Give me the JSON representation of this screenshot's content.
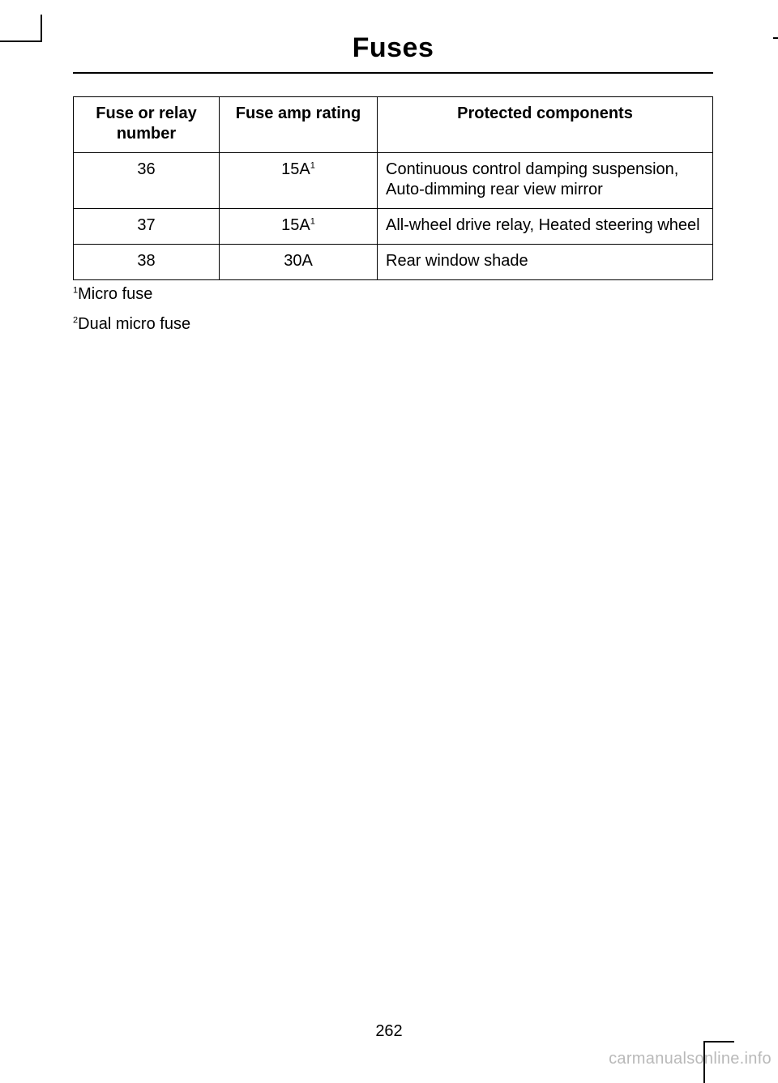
{
  "page": {
    "title": "Fuses",
    "number": "262",
    "watermark": "carmanualsonline.info"
  },
  "table": {
    "headers": {
      "col1_line1": "Fuse or relay",
      "col1_line2": "number",
      "col2": "Fuse amp rating",
      "col3": "Protected components"
    },
    "rows": [
      {
        "num": "36",
        "amp": "15A",
        "amp_sup": "1",
        "comp": "Continuous control damping suspen­sion, Auto-dimming rear view mirror"
      },
      {
        "num": "37",
        "amp": "15A",
        "amp_sup": "1",
        "comp": "All-wheel drive relay, Heated steering wheel"
      },
      {
        "num": "38",
        "amp": "30A",
        "amp_sup": "",
        "comp": "Rear window shade"
      }
    ]
  },
  "footnotes": [
    {
      "sup": "1",
      "text": "Micro fuse"
    },
    {
      "sup": "2",
      "text": "Dual micro fuse"
    }
  ]
}
